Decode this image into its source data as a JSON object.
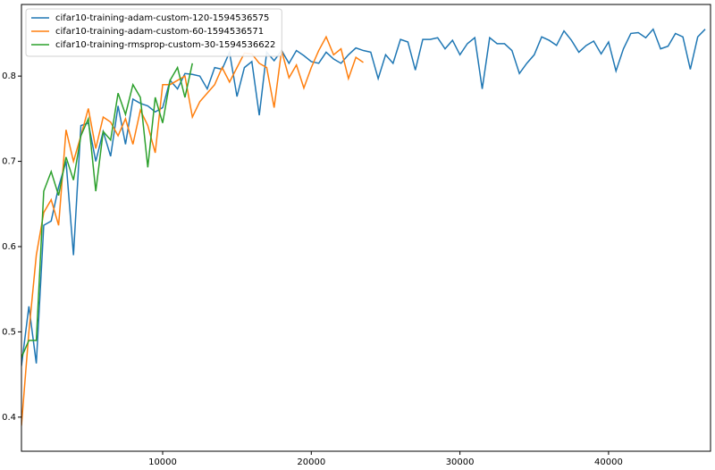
{
  "chart_data": {
    "type": "line",
    "xlim": [
      500,
      46860
    ],
    "ylim": [
      0.36,
      0.884
    ],
    "xticks": [
      10000,
      20000,
      30000,
      40000
    ],
    "yticks": [
      0.4,
      0.5,
      0.6,
      0.7,
      0.8
    ],
    "legend": "upper left",
    "series": [
      {
        "name": "cifar10-training-adam-custom-120-1594536575",
        "color": "#1f77b4",
        "x": [
          500,
          1000,
          1500,
          2000,
          2500,
          3000,
          3500,
          4000,
          4500,
          5000,
          5500,
          6000,
          6500,
          7000,
          7500,
          8000,
          8500,
          9000,
          9500,
          10000,
          10500,
          11000,
          11500,
          12000,
          12500,
          13000,
          13500,
          14000,
          14500,
          15000,
          15500,
          16000,
          16500,
          17000,
          17500,
          18000,
          18500,
          19000,
          19500,
          20000,
          20500,
          21000,
          21500,
          22000,
          22500,
          23000,
          23500,
          24000,
          24500,
          25000,
          25500,
          26000,
          26500,
          27000,
          27500,
          28000,
          28500,
          29000,
          29500,
          30000,
          30500,
          31000,
          31500,
          32000,
          32500,
          33000,
          33500,
          34000,
          34500,
          35000,
          35500,
          36000,
          36500,
          37000,
          37500,
          38000,
          38500,
          39000,
          39500,
          40000,
          40500,
          41000,
          41500,
          42000,
          42500,
          43000,
          43500,
          44000,
          44500,
          45000,
          45500,
          46000,
          46500
        ],
        "values": [
          0.46,
          0.53,
          0.463,
          0.625,
          0.63,
          0.67,
          0.7,
          0.59,
          0.742,
          0.745,
          0.7,
          0.735,
          0.706,
          0.765,
          0.72,
          0.773,
          0.768,
          0.765,
          0.758,
          0.763,
          0.795,
          0.785,
          0.803,
          0.802,
          0.8,
          0.785,
          0.81,
          0.808,
          0.828,
          0.776,
          0.81,
          0.817,
          0.754,
          0.828,
          0.818,
          0.83,
          0.815,
          0.83,
          0.824,
          0.817,
          0.815,
          0.828,
          0.82,
          0.815,
          0.825,
          0.833,
          0.83,
          0.828,
          0.797,
          0.825,
          0.815,
          0.843,
          0.84,
          0.807,
          0.843,
          0.843,
          0.845,
          0.832,
          0.842,
          0.825,
          0.838,
          0.845,
          0.785,
          0.845,
          0.838,
          0.838,
          0.83,
          0.803,
          0.815,
          0.825,
          0.846,
          0.842,
          0.836,
          0.853,
          0.842,
          0.828,
          0.836,
          0.841,
          0.826,
          0.84,
          0.806,
          0.832,
          0.85,
          0.851,
          0.845,
          0.855,
          0.832,
          0.835,
          0.85,
          0.846,
          0.808,
          0.846,
          0.855
        ]
      },
      {
        "name": "cifar10-training-adam-custom-60-1594536571",
        "color": "#ff7f0e",
        "x": [
          500,
          1000,
          1500,
          2000,
          2500,
          3000,
          3500,
          4000,
          4500,
          5000,
          5500,
          6000,
          6500,
          7000,
          7500,
          8000,
          8500,
          9000,
          9500,
          10000,
          10500,
          11000,
          11500,
          12000,
          12500,
          13000,
          13500,
          14000,
          14500,
          15000,
          15500,
          16000,
          16500,
          17000,
          17500,
          18000,
          18500,
          19000,
          19500,
          20000,
          20500,
          21000,
          21500,
          22000,
          22500,
          23000,
          23500
        ],
        "values": [
          0.39,
          0.5,
          0.59,
          0.64,
          0.655,
          0.625,
          0.737,
          0.7,
          0.73,
          0.762,
          0.715,
          0.752,
          0.746,
          0.73,
          0.75,
          0.72,
          0.76,
          0.742,
          0.71,
          0.79,
          0.79,
          0.795,
          0.8,
          0.752,
          0.77,
          0.78,
          0.79,
          0.81,
          0.793,
          0.81,
          0.827,
          0.826,
          0.815,
          0.81,
          0.763,
          0.83,
          0.798,
          0.813,
          0.786,
          0.81,
          0.83,
          0.846,
          0.825,
          0.832,
          0.797,
          0.822,
          0.816
        ]
      },
      {
        "name": "cifar10-training-rmsprop-custom-30-1594536622",
        "color": "#2ca02c",
        "x": [
          500,
          1000,
          1500,
          2000,
          2500,
          3000,
          3500,
          4000,
          4500,
          5000,
          5500,
          6000,
          6500,
          7000,
          7500,
          8000,
          8500,
          9000,
          9500,
          10000,
          10500,
          11000,
          11500,
          12000
        ],
        "values": [
          0.47,
          0.49,
          0.49,
          0.665,
          0.688,
          0.66,
          0.705,
          0.678,
          0.73,
          0.75,
          0.665,
          0.735,
          0.725,
          0.78,
          0.755,
          0.79,
          0.775,
          0.693,
          0.775,
          0.745,
          0.795,
          0.81,
          0.775,
          0.815
        ]
      }
    ]
  }
}
